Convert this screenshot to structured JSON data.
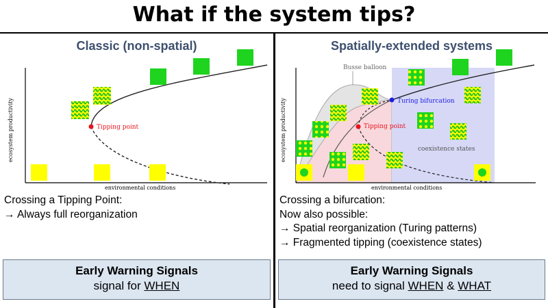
{
  "header": {
    "title": "What if the system tips?"
  },
  "left": {
    "title": "Classic (non-spatial)",
    "plot": {
      "ylabel": "ecosystem productivity",
      "xlabel": "environmental conditions",
      "annotations": {
        "tipping_point": "Tipping point"
      },
      "colors": {
        "vegetation": "#1ed41e",
        "bare": "#ffff00",
        "tip": "#e8141e"
      }
    },
    "text_lines": [
      "Crossing a Tipping Point:",
      "→ Always full reorganization"
    ],
    "ews": {
      "heading": "Early Warning Signals",
      "prefix": "signal for ",
      "when": "WHEN"
    }
  },
  "right": {
    "title": "Spatially-extended systems",
    "plot": {
      "ylabel": "ecosystem productivity",
      "xlabel": "environmental conditions",
      "annotations": {
        "busse": "Busse balloon",
        "turing": "Turing bifurcation",
        "tipping_point": "Tipping point",
        "coexistence": "coexistence states"
      },
      "colors": {
        "turing": "#1e1ee0",
        "coexistence_region": "#d6d8f6",
        "tipping_region": "#f8d8dc",
        "balloon": "#e4e4e4"
      }
    },
    "text_lines": [
      "Crossing a bifurcation:",
      "Now also possible:",
      "→ Spatial reorganization (Turing patterns)",
      "→ Fragmented tipping (coexistence states)"
    ],
    "ews": {
      "heading": "Early Warning Signals",
      "prefix": "need to signal ",
      "when": "WHEN",
      "amp": " & ",
      "what": "WHAT"
    }
  }
}
